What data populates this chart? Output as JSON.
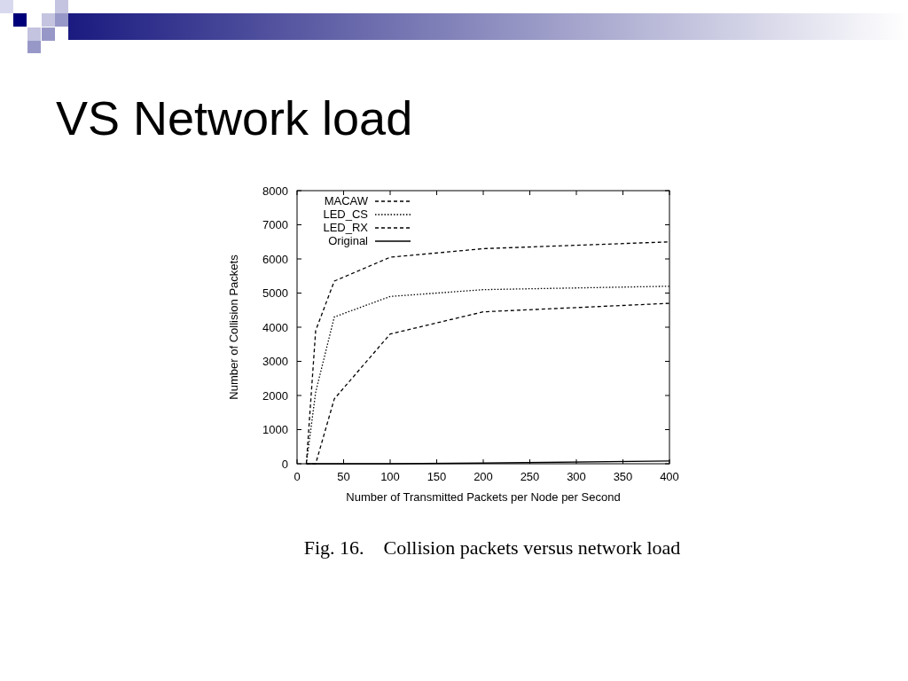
{
  "chart_data": {
    "type": "line",
    "title": "VS Network load",
    "xlabel": "Number of Transmitted Packets per Node per Second",
    "ylabel": "Number of Collision Packets",
    "annotations": [
      "Fig. 16.    Collision packets versus network load"
    ],
    "x": [
      10,
      20,
      40,
      100,
      200,
      400
    ],
    "series": [
      {
        "name": "MACAW",
        "color": "#000000",
        "line_style": "dashed",
        "values": [
          0,
          3900,
          5350,
          6050,
          6300,
          6500
        ]
      },
      {
        "name": "LED_CS",
        "color": "#000000",
        "line_style": "dotted",
        "values": [
          0,
          2100,
          4300,
          4900,
          5100,
          5200
        ]
      },
      {
        "name": "LED_RX",
        "color": "#000000",
        "line_style": "dashed",
        "values": [
          0,
          0,
          1900,
          3800,
          4450,
          4700
        ]
      },
      {
        "name": "Original",
        "color": "#000000",
        "line_style": "solid",
        "values": [
          0,
          0,
          0,
          0,
          20,
          80
        ]
      }
    ],
    "xlim": [
      0,
      400
    ],
    "xticks": [
      0,
      50,
      100,
      150,
      200,
      250,
      300,
      350,
      400
    ],
    "ylim": [
      0,
      8000
    ],
    "yticks": [
      0,
      1000,
      2000,
      3000,
      4000,
      5000,
      6000,
      7000,
      8000
    ],
    "grid": false,
    "legend": "top left",
    "marker": "none"
  }
}
